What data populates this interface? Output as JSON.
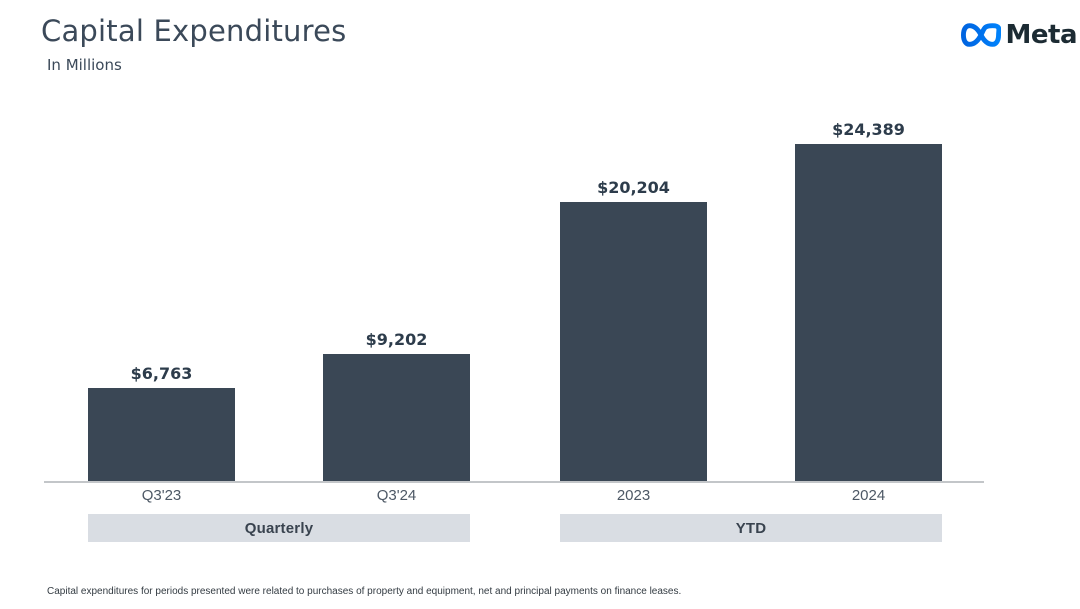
{
  "header": {
    "title": "Capital Expenditures",
    "subtitle": "In Millions",
    "logo_text": "Meta"
  },
  "chart_data": {
    "type": "bar",
    "title": "Capital Expenditures",
    "subtitle": "In Millions",
    "ylim": [
      0,
      24389
    ],
    "grid": false,
    "legend": false,
    "bar_color": "#3a4755",
    "groups": [
      {
        "label": "Quarterly",
        "categories": [
          "Q3'23",
          "Q3'24"
        ],
        "values": [
          6763,
          9202
        ],
        "value_labels": [
          "$6,763",
          "$9,202"
        ]
      },
      {
        "label": "YTD",
        "categories": [
          "2023",
          "2024"
        ],
        "values": [
          20204,
          24389
        ],
        "value_labels": [
          "$20,204",
          "$24,389"
        ]
      }
    ]
  },
  "footnote": "Capital expenditures for periods presented were related to purchases of property and equipment, net and principal payments on finance leases.",
  "colors": {
    "bar": "#3a4755",
    "band_background": "#d9dde3",
    "title_text": "#3b4959",
    "axis_line": "#c3c6c9",
    "logo_blue_start": "#0064e0",
    "logo_blue_end": "#0082fb",
    "logo_text": "#1c2b33"
  }
}
